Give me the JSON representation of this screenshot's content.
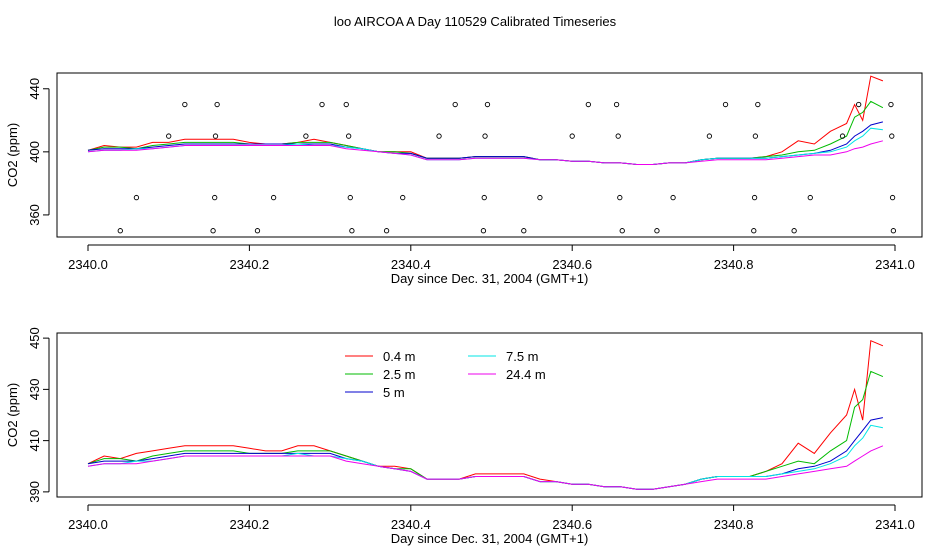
{
  "title": "loo AIRCOA A  Day 110529  Calibrated Timeseries",
  "colors": {
    "0.4 m": "#ff0000",
    "2.5 m": "#00bb00",
    "5 m": "#0000cc",
    "7.5 m": "#00e5e5",
    "24.4 m": "#ee00ee",
    "axis": "#000000"
  },
  "chart_data": [
    {
      "type": "line",
      "title": "loo AIRCOA A  Day 110529  Calibrated Timeseries",
      "xlabel": "Day since Dec. 31, 2004 (GMT+1)",
      "ylabel": "CO2 (ppm)",
      "xlim": [
        2340.0,
        2341.0
      ],
      "ylim": [
        346,
        450
      ],
      "x_ticks": [
        "2340.0",
        "2340.2",
        "2340.4",
        "2340.6",
        "2340.8",
        "2341.0"
      ],
      "y_ticks": [
        "360",
        "400",
        "440"
      ],
      "grid": false,
      "legend": "none",
      "scatter_points": {
        "name": "",
        "points": [
          [
            2340.04,
            350
          ],
          [
            2340.06,
            371
          ],
          [
            2340.1,
            410
          ],
          [
            2340.12,
            430
          ],
          [
            2340.155,
            350
          ],
          [
            2340.157,
            371
          ],
          [
            2340.158,
            410
          ],
          [
            2340.16,
            430
          ],
          [
            2340.21,
            350
          ],
          [
            2340.23,
            371
          ],
          [
            2340.27,
            410
          ],
          [
            2340.29,
            430
          ],
          [
            2340.32,
            430
          ],
          [
            2340.323,
            410
          ],
          [
            2340.325,
            371
          ],
          [
            2340.327,
            350
          ],
          [
            2340.37,
            350
          ],
          [
            2340.39,
            371
          ],
          [
            2340.435,
            410
          ],
          [
            2340.455,
            430
          ],
          [
            2340.49,
            350
          ],
          [
            2340.491,
            371
          ],
          [
            2340.492,
            410
          ],
          [
            2340.495,
            430
          ],
          [
            2340.54,
            350
          ],
          [
            2340.56,
            371
          ],
          [
            2340.6,
            410
          ],
          [
            2340.62,
            430
          ],
          [
            2340.655,
            430
          ],
          [
            2340.657,
            410
          ],
          [
            2340.659,
            371
          ],
          [
            2340.662,
            350
          ],
          [
            2340.705,
            350
          ],
          [
            2340.725,
            371
          ],
          [
            2340.77,
            410
          ],
          [
            2340.79,
            430
          ],
          [
            2340.825,
            350
          ],
          [
            2340.826,
            371
          ],
          [
            2340.827,
            410
          ],
          [
            2340.83,
            430
          ],
          [
            2340.875,
            350
          ],
          [
            2340.895,
            371
          ],
          [
            2340.935,
            410
          ],
          [
            2340.955,
            430
          ],
          [
            2340.995,
            430
          ],
          [
            2340.996,
            410
          ],
          [
            2340.997,
            371
          ],
          [
            2340.998,
            350
          ]
        ]
      },
      "x": [
        2340.0,
        2340.02,
        2340.04,
        2340.06,
        2340.08,
        2340.1,
        2340.12,
        2340.14,
        2340.16,
        2340.18,
        2340.2,
        2340.22,
        2340.24,
        2340.26,
        2340.28,
        2340.3,
        2340.32,
        2340.34,
        2340.36,
        2340.38,
        2340.4,
        2340.42,
        2340.44,
        2340.46,
        2340.48,
        2340.5,
        2340.52,
        2340.54,
        2340.56,
        2340.58,
        2340.6,
        2340.62,
        2340.64,
        2340.66,
        2340.68,
        2340.7,
        2340.72,
        2340.74,
        2340.76,
        2340.78,
        2340.8,
        2340.82,
        2340.84,
        2340.86,
        2340.88,
        2340.9,
        2340.92,
        2340.94,
        2340.95,
        2340.96,
        2340.97,
        2340.985
      ],
      "series": [
        {
          "name": "0.4 m",
          "values": [
            401,
            404,
            403,
            403,
            406,
            406,
            408,
            408,
            408,
            408,
            406,
            405,
            405,
            406,
            408,
            406,
            404,
            402,
            400,
            400,
            400,
            396,
            396,
            396,
            397,
            397,
            397,
            397,
            395,
            395,
            394,
            394,
            393,
            393,
            392,
            392,
            393,
            393,
            395,
            396,
            396,
            396,
            397,
            400,
            407,
            405,
            413,
            418,
            430,
            420,
            448,
            445
          ]
        },
        {
          "name": "2.5 m",
          "values": [
            401,
            403,
            403,
            402,
            404,
            405,
            406,
            406,
            406,
            406,
            405,
            405,
            405,
            406,
            406,
            406,
            404,
            402,
            400,
            400,
            399,
            396,
            396,
            396,
            397,
            397,
            397,
            397,
            395,
            395,
            394,
            394,
            393,
            393,
            392,
            392,
            393,
            393,
            395,
            396,
            396,
            396,
            397,
            398,
            400,
            401,
            405,
            410,
            422,
            425,
            432,
            428
          ]
        },
        {
          "name": "5 m",
          "values": [
            401,
            402,
            402,
            402,
            403,
            404,
            405,
            405,
            405,
            405,
            405,
            405,
            405,
            405,
            405,
            405,
            403,
            402,
            400,
            399,
            399,
            396,
            396,
            396,
            397,
            397,
            397,
            397,
            395,
            395,
            394,
            394,
            393,
            393,
            392,
            392,
            393,
            393,
            395,
            396,
            396,
            396,
            396,
            397,
            398,
            399,
            401,
            405,
            410,
            413,
            417,
            419
          ]
        },
        {
          "name": "7.5 m",
          "values": [
            400,
            401,
            401,
            402,
            402,
            403,
            404,
            404,
            404,
            404,
            404,
            404,
            404,
            405,
            404,
            404,
            403,
            402,
            400,
            399,
            398,
            395,
            395,
            395,
            396,
            396,
            396,
            396,
            395,
            395,
            394,
            394,
            393,
            393,
            392,
            392,
            393,
            393,
            395,
            396,
            396,
            396,
            396,
            397,
            398,
            399,
            400,
            403,
            407,
            410,
            415,
            414
          ]
        },
        {
          "name": "24.4 m",
          "values": [
            400,
            401,
            401,
            401,
            402,
            403,
            404,
            404,
            404,
            404,
            404,
            404,
            404,
            404,
            404,
            404,
            402,
            401,
            400,
            399,
            398,
            395,
            395,
            395,
            396,
            396,
            396,
            396,
            395,
            395,
            394,
            394,
            393,
            393,
            392,
            392,
            393,
            393,
            394,
            395,
            395,
            395,
            395,
            396,
            397,
            398,
            398,
            400,
            402,
            403,
            405,
            407
          ]
        }
      ]
    },
    {
      "type": "line",
      "title": "",
      "xlabel": "Day since Dec. 31, 2004 (GMT+1)",
      "ylabel": "CO2 (ppm)",
      "xlim": [
        2340.0,
        2341.0
      ],
      "ylim": [
        388,
        452
      ],
      "x_ticks": [
        "2340.0",
        "2340.2",
        "2340.4",
        "2340.6",
        "2340.8",
        "2341.0"
      ],
      "y_ticks": [
        "390",
        "410",
        "430",
        "450"
      ],
      "grid": false,
      "legend": "top-center",
      "legend_entries": [
        "0.4 m",
        "2.5 m",
        "5 m",
        "7.5 m",
        "24.4 m"
      ],
      "x": [
        2340.0,
        2340.02,
        2340.04,
        2340.06,
        2340.08,
        2340.1,
        2340.12,
        2340.14,
        2340.16,
        2340.18,
        2340.2,
        2340.22,
        2340.24,
        2340.26,
        2340.28,
        2340.3,
        2340.32,
        2340.34,
        2340.36,
        2340.38,
        2340.4,
        2340.42,
        2340.44,
        2340.46,
        2340.48,
        2340.5,
        2340.52,
        2340.54,
        2340.56,
        2340.58,
        2340.6,
        2340.62,
        2340.64,
        2340.66,
        2340.68,
        2340.7,
        2340.72,
        2340.74,
        2340.76,
        2340.78,
        2340.8,
        2340.82,
        2340.84,
        2340.86,
        2340.88,
        2340.9,
        2340.92,
        2340.94,
        2340.95,
        2340.96,
        2340.97,
        2340.985
      ],
      "series": [
        {
          "name": "0.4 m",
          "values": [
            401,
            404,
            403,
            405,
            406,
            407,
            408,
            408,
            408,
            408,
            407,
            406,
            406,
            408,
            408,
            406,
            404,
            402,
            400,
            400,
            399,
            395,
            395,
            395,
            397,
            397,
            397,
            397,
            395,
            394,
            393,
            393,
            392,
            392,
            391,
            391,
            392,
            393,
            395,
            396,
            396,
            396,
            398,
            401,
            409,
            405,
            413,
            420,
            430,
            418,
            449,
            447
          ]
        },
        {
          "name": "2.5 m",
          "values": [
            401,
            403,
            403,
            402,
            404,
            405,
            406,
            406,
            406,
            406,
            405,
            405,
            405,
            406,
            406,
            406,
            404,
            402,
            400,
            399,
            399,
            395,
            395,
            395,
            396,
            396,
            396,
            396,
            394,
            394,
            393,
            393,
            392,
            392,
            391,
            391,
            392,
            393,
            395,
            396,
            396,
            396,
            398,
            400,
            402,
            401,
            406,
            410,
            423,
            426,
            437,
            435
          ]
        },
        {
          "name": "5 m",
          "values": [
            401,
            402,
            402,
            402,
            403,
            404,
            405,
            405,
            405,
            405,
            405,
            405,
            405,
            405,
            405,
            405,
            403,
            402,
            400,
            399,
            398,
            395,
            395,
            395,
            396,
            396,
            396,
            396,
            394,
            394,
            393,
            393,
            392,
            392,
            391,
            391,
            392,
            393,
            395,
            396,
            396,
            396,
            396,
            397,
            399,
            400,
            402,
            406,
            410,
            414,
            418,
            419
          ]
        },
        {
          "name": "7.5 m",
          "values": [
            400,
            401,
            401,
            402,
            402,
            403,
            404,
            404,
            404,
            404,
            404,
            404,
            404,
            405,
            404,
            404,
            403,
            402,
            400,
            399,
            398,
            395,
            395,
            395,
            396,
            396,
            396,
            396,
            394,
            394,
            393,
            393,
            392,
            392,
            391,
            391,
            392,
            393,
            395,
            396,
            396,
            396,
            396,
            397,
            398,
            399,
            401,
            404,
            408,
            411,
            416,
            415
          ]
        },
        {
          "name": "24.4 m",
          "values": [
            400,
            401,
            401,
            401,
            402,
            403,
            404,
            404,
            404,
            404,
            404,
            404,
            404,
            404,
            404,
            404,
            402,
            401,
            400,
            399,
            398,
            395,
            395,
            395,
            396,
            396,
            396,
            396,
            394,
            394,
            393,
            393,
            392,
            392,
            391,
            391,
            392,
            393,
            394,
            395,
            395,
            395,
            395,
            396,
            397,
            398,
            399,
            400,
            402,
            404,
            406,
            408
          ]
        }
      ]
    }
  ]
}
